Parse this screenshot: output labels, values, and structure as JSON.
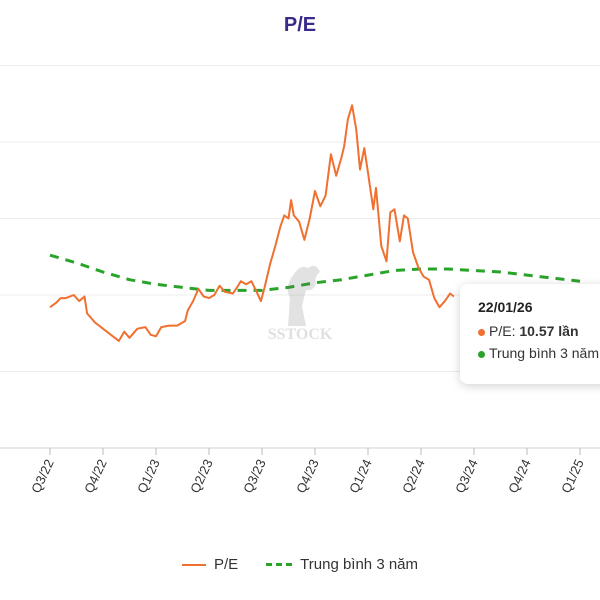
{
  "chart_data": {
    "type": "line",
    "title": "P/E",
    "x_tick_labels": [
      "Q3/22",
      "Q4/22",
      "Q1/23",
      "Q2/23",
      "Q3/23",
      "Q4/23",
      "Q1/24",
      "Q2/24",
      "Q3/24",
      "Q4/24",
      "Q1/25"
    ],
    "grid": true,
    "legend_position": "bottom",
    "series": [
      {
        "name": "P/E",
        "color": "#f07030",
        "style": "solid",
        "points": [
          [
            0,
            14.2
          ],
          [
            0.12,
            14.5
          ],
          [
            0.2,
            14.8
          ],
          [
            0.3,
            14.8
          ],
          [
            0.45,
            15.0
          ],
          [
            0.55,
            14.6
          ],
          [
            0.65,
            14.9
          ],
          [
            0.7,
            13.8
          ],
          [
            0.85,
            13.2
          ],
          [
            1.0,
            12.8
          ],
          [
            1.15,
            12.4
          ],
          [
            1.3,
            12.0
          ],
          [
            1.4,
            12.6
          ],
          [
            1.5,
            12.2
          ],
          [
            1.65,
            12.8
          ],
          [
            1.8,
            12.9
          ],
          [
            1.9,
            12.4
          ],
          [
            2.0,
            12.3
          ],
          [
            2.1,
            12.9
          ],
          [
            2.25,
            13.0
          ],
          [
            2.4,
            13.0
          ],
          [
            2.55,
            13.3
          ],
          [
            2.6,
            14.0
          ],
          [
            2.7,
            14.6
          ],
          [
            2.8,
            15.4
          ],
          [
            2.9,
            14.9
          ],
          [
            3.0,
            14.8
          ],
          [
            3.1,
            15.0
          ],
          [
            3.2,
            15.6
          ],
          [
            3.3,
            15.2
          ],
          [
            3.45,
            15.1
          ],
          [
            3.55,
            15.6
          ],
          [
            3.6,
            15.9
          ],
          [
            3.7,
            15.7
          ],
          [
            3.8,
            15.9
          ],
          [
            3.9,
            15.2
          ],
          [
            3.98,
            14.6
          ],
          [
            4.05,
            15.5
          ],
          [
            4.15,
            17.0
          ],
          [
            4.25,
            18.2
          ],
          [
            4.35,
            19.5
          ],
          [
            4.42,
            20.2
          ],
          [
            4.5,
            20.0
          ],
          [
            4.55,
            21.2
          ],
          [
            4.6,
            20.2
          ],
          [
            4.7,
            19.8
          ],
          [
            4.8,
            18.6
          ],
          [
            4.9,
            20.0
          ],
          [
            5.0,
            21.8
          ],
          [
            5.1,
            20.8
          ],
          [
            5.2,
            21.5
          ],
          [
            5.3,
            24.2
          ],
          [
            5.4,
            22.8
          ],
          [
            5.5,
            24.0
          ],
          [
            5.55,
            24.7
          ],
          [
            5.62,
            26.5
          ],
          [
            5.7,
            27.4
          ],
          [
            5.78,
            25.8
          ],
          [
            5.85,
            23.2
          ],
          [
            5.93,
            24.6
          ],
          [
            6.0,
            23.0
          ],
          [
            6.1,
            20.6
          ],
          [
            6.15,
            22.0
          ],
          [
            6.25,
            18.2
          ],
          [
            6.35,
            17.2
          ],
          [
            6.42,
            20.4
          ],
          [
            6.5,
            20.6
          ],
          [
            6.6,
            18.5
          ],
          [
            6.68,
            20.2
          ],
          [
            6.75,
            20.0
          ],
          [
            6.85,
            17.8
          ],
          [
            6.95,
            16.8
          ],
          [
            7.05,
            16.2
          ],
          [
            7.15,
            16.0
          ],
          [
            7.25,
            14.8
          ],
          [
            7.35,
            14.2
          ],
          [
            7.45,
            14.6
          ],
          [
            7.55,
            15.1
          ],
          [
            7.62,
            14.9
          ]
        ]
      },
      {
        "name": "Trung bình 3 năm",
        "color": "#2aa32a",
        "style": "dashed",
        "points": [
          [
            0,
            17.6
          ],
          [
            0.5,
            17.1
          ],
          [
            1.0,
            16.5
          ],
          [
            1.5,
            16.0
          ],
          [
            2.0,
            15.7
          ],
          [
            2.5,
            15.5
          ],
          [
            3.0,
            15.3
          ],
          [
            3.5,
            15.3
          ],
          [
            4.0,
            15.3
          ],
          [
            4.5,
            15.5
          ],
          [
            5.0,
            15.8
          ],
          [
            5.5,
            16.0
          ],
          [
            6.0,
            16.3
          ],
          [
            6.5,
            16.6
          ],
          [
            7.0,
            16.7
          ],
          [
            7.5,
            16.7
          ],
          [
            8.0,
            16.6
          ],
          [
            8.5,
            16.5
          ],
          [
            9.0,
            16.3
          ],
          [
            9.5,
            16.1
          ],
          [
            10.0,
            15.9
          ]
        ]
      }
    ],
    "tooltip": {
      "date": "22/01/26",
      "pe_label": "P/E: ",
      "pe_value": "10.57 lần",
      "avg_label": "Trung bình 3 năm"
    },
    "watermark_text": "SSTOCK"
  }
}
